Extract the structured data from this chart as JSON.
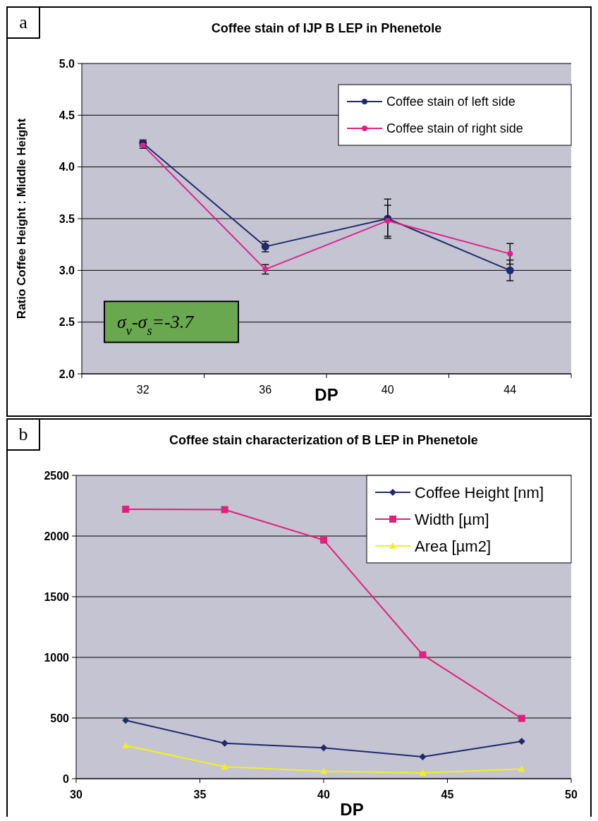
{
  "chart_data": [
    {
      "type": "line",
      "title": "Coffee stain of IJP B LEP in Phenetole",
      "xlabel": "DP",
      "ylabel": "Ratio Coffee Height : Middle Height",
      "categories": [
        "32",
        "36",
        "40",
        "44"
      ],
      "series": [
        {
          "name": "Coffee stain of left side",
          "color": "#1f2a6e",
          "values": [
            4.23,
            3.23,
            3.5,
            3.0
          ],
          "errors": [
            0.03,
            0.05,
            0.19,
            0.1
          ]
        },
        {
          "name": "Coffee stain of right side",
          "color": "#e0208a",
          "values": [
            4.21,
            3.01,
            3.48,
            3.16
          ],
          "errors": [
            0.03,
            0.045,
            0.15,
            0.1
          ]
        }
      ],
      "ylim": [
        2.0,
        5.0
      ],
      "yticks": [
        {
          "value": 2,
          "label": "2.0"
        },
        {
          "value": 2.5,
          "label": "2.5"
        },
        {
          "value": 3,
          "label": "3.0"
        },
        {
          "value": 3.5,
          "label": "3.5"
        },
        {
          "value": 4,
          "label": "4.0"
        },
        {
          "value": 4.5,
          "label": "4.5"
        },
        {
          "value": 5,
          "label": "5.0"
        }
      ],
      "grid": "y",
      "legend": "top right",
      "marker": "circle",
      "annotations": [
        "a",
        "σ$_{v}$-σ$_{s}$=-3.7"
      ]
    },
    {
      "type": "line",
      "title": "Coffee stain characterization of B LEP in Phenetole",
      "xlabel": "DP",
      "series": [
        {
          "name": "Coffee Height [nm]",
          "color": "#1f2a6e",
          "marker": "diamond",
          "x": [
            32,
            36,
            40,
            44,
            48
          ],
          "values": [
            481,
            292,
            254,
            180,
            308
          ]
        },
        {
          "name": "Width [µm]",
          "color": "#e0207a",
          "marker": "square",
          "x": [
            32,
            36,
            40,
            44,
            48
          ],
          "values": [
            2221,
            2218,
            1967,
            1021,
            497
          ]
        },
        {
          "name": "Area [µm2]",
          "color": "#f0f020",
          "marker": "triangle",
          "x": [
            32,
            36,
            40,
            44,
            48
          ],
          "values": [
            273,
            99,
            61,
            48,
            80
          ]
        }
      ],
      "xlim": [
        30,
        50
      ],
      "xticks": [
        30,
        35,
        40,
        45,
        50
      ],
      "ylim": [
        0,
        2500
      ],
      "yticks": [
        0,
        500,
        1000,
        1500,
        2000,
        2500
      ],
      "grid": "y",
      "legend": "top right",
      "annotations": [
        "b"
      ]
    }
  ]
}
